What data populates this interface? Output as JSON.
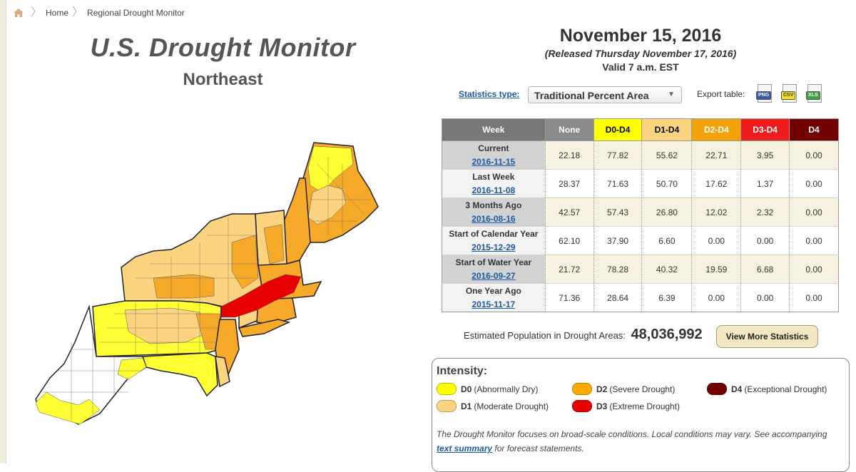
{
  "breadcrumb": {
    "home": "Home",
    "current": "Regional Drought Monitor"
  },
  "title": "U.S. Drought Monitor",
  "region": "Northeast",
  "date": "November 15, 2016",
  "released": "(Released Thursday November 17, 2016)",
  "valid": "Valid 7 a.m. EST",
  "stats": {
    "type_label": "Statistics type:",
    "type_value": "Traditional Percent Area",
    "export_label": "Export table:",
    "exports": [
      "PNG",
      "CSV",
      "XLS"
    ]
  },
  "table": {
    "headers": [
      "Week",
      "None",
      "D0-D4",
      "D1-D4",
      "D2-D4",
      "D3-D4",
      "D4"
    ],
    "header_colors": [
      "#777777",
      "#8a8a8a",
      "#ffff00",
      "#fbd47f",
      "#f3a20a",
      "#ee1c1c",
      "#730000"
    ],
    "header_text_colors": [
      "#ffffff",
      "#ffffff",
      "#000000",
      "#000000",
      "#ffffff",
      "#ffffff",
      "#ffffff"
    ],
    "rows": [
      {
        "label": "Current",
        "date": "2016-11-15",
        "values": [
          "22.18",
          "77.82",
          "55.62",
          "22.71",
          "3.95",
          "0.00"
        ]
      },
      {
        "label": "Last Week",
        "date": "2016-11-08",
        "values": [
          "28.37",
          "71.63",
          "50.70",
          "17.62",
          "1.37",
          "0.00"
        ]
      },
      {
        "label": "3 Months Ago",
        "date": "2016-08-16",
        "values": [
          "42.57",
          "57.43",
          "26.80",
          "12.02",
          "2.32",
          "0.00"
        ]
      },
      {
        "label": "Start of Calendar Year",
        "date": "2015-12-29",
        "values": [
          "62.10",
          "37.90",
          "6.60",
          "0.00",
          "0.00",
          "0.00"
        ]
      },
      {
        "label": "Start of Water Year",
        "date": "2016-09-27",
        "values": [
          "21.72",
          "78.28",
          "40.32",
          "19.59",
          "6.68",
          "0.00"
        ]
      },
      {
        "label": "One Year Ago",
        "date": "2015-11-17",
        "values": [
          "71.36",
          "28.64",
          "6.39",
          "0.00",
          "0.00",
          "0.00"
        ]
      }
    ]
  },
  "population": {
    "label": "Estimated Population in Drought Areas:",
    "value": "48,036,992"
  },
  "more_stats_button": "View More Statistics",
  "legend": {
    "title": "Intensity:",
    "items": [
      {
        "code": "D0",
        "desc": "(Abnormally Dry)",
        "color": "#ffff00"
      },
      {
        "code": "D1",
        "desc": "(Moderate Drought)",
        "color": "#fcd37f"
      },
      {
        "code": "D2",
        "desc": "(Severe Drought)",
        "color": "#ffaa00"
      },
      {
        "code": "D3",
        "desc": "(Extreme Drought)",
        "color": "#e60000"
      },
      {
        "code": "D4",
        "desc": "(Exceptional Drought)",
        "color": "#730000"
      }
    ],
    "note_before": "The Drought Monitor focuses on broad-scale conditions. Local conditions may vary. See accompanying",
    "note_link": "text summary",
    "note_after": "for forecast statements."
  }
}
